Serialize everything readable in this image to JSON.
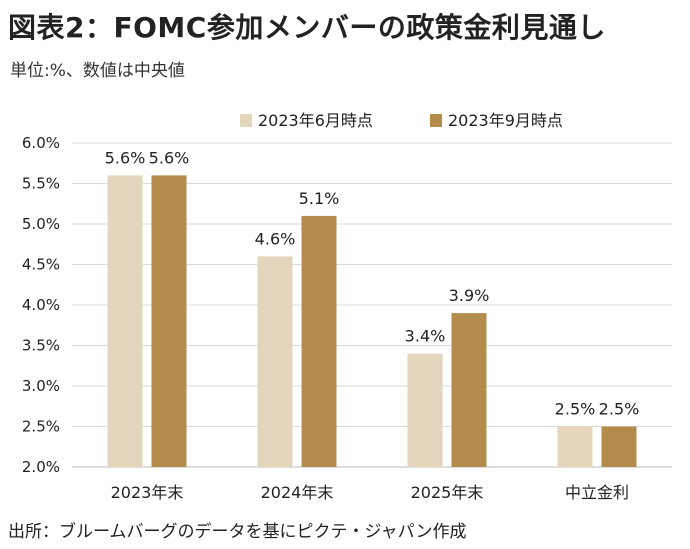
{
  "title": "図表2：FOMC参加メンバーの政策金利見通し",
  "unit_note": "単位:%、数値は中央値",
  "source_note": "出所：ブルームバーグのデータを基にピクテ・ジャパン作成",
  "chart_data": {
    "type": "bar",
    "categories": [
      "2023年末",
      "2024年末",
      "2025年末",
      "中立金利"
    ],
    "series": [
      {
        "name": "2023年6月時点",
        "values": [
          5.6,
          4.6,
          3.4,
          2.5
        ],
        "color": "#e3d6bd"
      },
      {
        "name": "2023年9月時点",
        "values": [
          5.6,
          5.1,
          3.9,
          2.5
        ],
        "color": "#b38c4c"
      }
    ],
    "data_labels": [
      [
        "5.6%",
        "4.6%",
        "3.4%",
        "2.5%"
      ],
      [
        "5.6%",
        "5.1%",
        "3.9%",
        "2.5%"
      ]
    ],
    "ylim": [
      2.0,
      6.0
    ],
    "yticks": [
      "2.0%",
      "2.5%",
      "3.0%",
      "3.5%",
      "4.0%",
      "4.5%",
      "5.0%",
      "5.5%",
      "6.0%"
    ],
    "grid": true,
    "legend_position": "top-center"
  }
}
